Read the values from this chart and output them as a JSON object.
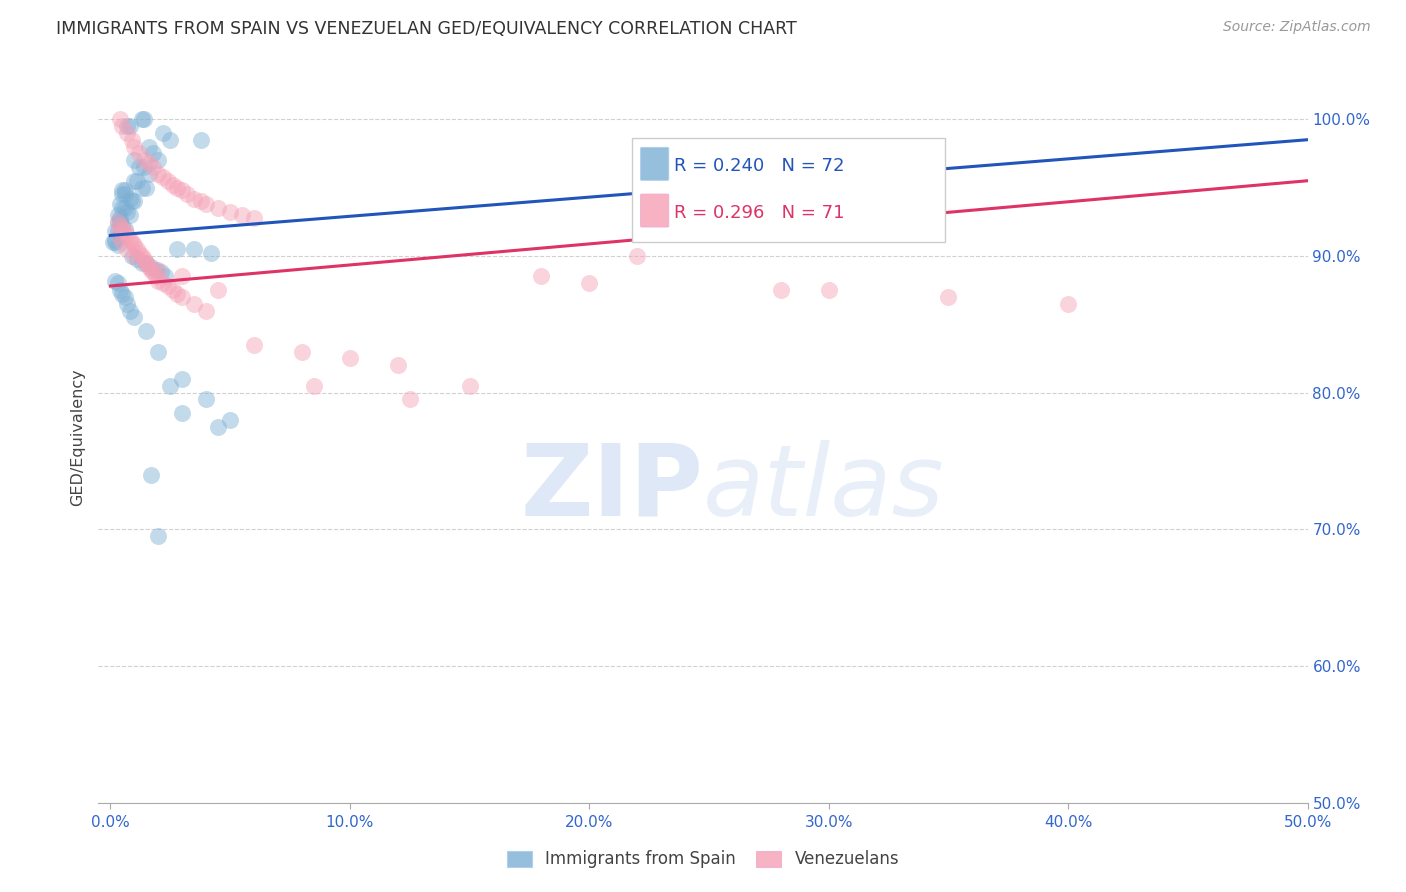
{
  "title": "IMMIGRANTS FROM SPAIN VS VENEZUELAN GED/EQUIVALENCY CORRELATION CHART",
  "source": "Source: ZipAtlas.com",
  "ylabel": "GED/Equivalency",
  "ytick_vals": [
    50.0,
    60.0,
    70.0,
    80.0,
    90.0,
    100.0
  ],
  "xtick_vals": [
    0.0,
    10.0,
    20.0,
    30.0,
    40.0,
    50.0
  ],
  "xmin": -0.5,
  "xmax": 50.0,
  "ymin": 50.0,
  "ymax": 103.5,
  "legend_blue_label": "Immigrants from Spain",
  "legend_pink_label": "Venezuelans",
  "blue_R": 0.24,
  "blue_N": 72,
  "pink_R": 0.296,
  "pink_N": 71,
  "watermark_zip": "ZIP",
  "watermark_atlas": "atlas",
  "blue_color": "#7bafd4",
  "pink_color": "#f5a0b5",
  "blue_line_color": "#2255bb",
  "pink_line_color": "#dd3366",
  "blue_line_x": [
    0.0,
    50.0
  ],
  "blue_line_y": [
    91.5,
    98.5
  ],
  "pink_line_x": [
    0.0,
    50.0
  ],
  "pink_line_y": [
    87.8,
    95.5
  ],
  "blue_points_x": [
    1.3,
    1.4,
    0.7,
    0.8,
    2.2,
    2.5,
    3.8,
    1.6,
    1.8,
    2.0,
    1.0,
    1.2,
    1.4,
    1.6,
    1.0,
    1.1,
    1.3,
    1.5,
    0.5,
    0.6,
    0.5,
    0.6,
    0.8,
    0.9,
    1.0,
    0.4,
    0.5,
    0.6,
    0.7,
    0.8,
    0.3,
    0.4,
    0.3,
    0.4,
    0.5,
    0.6,
    0.2,
    0.3,
    0.4,
    0.2,
    0.1,
    0.2,
    0.3,
    2.8,
    3.5,
    4.2,
    0.9,
    1.1,
    1.3,
    1.5,
    1.7,
    1.9,
    2.1,
    2.3,
    0.2,
    0.3,
    0.4,
    0.5,
    0.6,
    0.7,
    0.8,
    1.0,
    1.5,
    2.0,
    3.0,
    4.0,
    5.0,
    3.0,
    4.5,
    2.5,
    1.7,
    2.0
  ],
  "blue_points_y": [
    100.0,
    100.0,
    99.5,
    99.5,
    99.0,
    98.5,
    98.5,
    98.0,
    97.5,
    97.0,
    97.0,
    96.5,
    96.5,
    96.0,
    95.5,
    95.5,
    95.0,
    95.0,
    94.8,
    94.8,
    94.5,
    94.5,
    94.2,
    94.0,
    94.0,
    93.8,
    93.5,
    93.5,
    93.2,
    93.0,
    93.0,
    92.8,
    92.5,
    92.5,
    92.2,
    92.0,
    91.8,
    91.8,
    91.5,
    91.2,
    91.0,
    91.0,
    90.8,
    90.5,
    90.5,
    90.2,
    90.0,
    89.8,
    89.5,
    89.5,
    89.2,
    89.0,
    88.8,
    88.5,
    88.2,
    88.0,
    87.5,
    87.2,
    87.0,
    86.5,
    86.0,
    85.5,
    84.5,
    83.0,
    81.0,
    79.5,
    78.0,
    78.5,
    77.5,
    80.5,
    74.0,
    69.5
  ],
  "pink_points_x": [
    0.4,
    0.5,
    0.7,
    0.9,
    1.0,
    1.2,
    1.4,
    1.6,
    1.8,
    2.0,
    2.2,
    2.4,
    2.6,
    2.8,
    3.0,
    3.2,
    3.5,
    3.8,
    4.0,
    4.5,
    5.0,
    5.5,
    6.0,
    0.3,
    0.4,
    0.5,
    0.6,
    0.7,
    0.8,
    0.9,
    1.0,
    1.1,
    1.2,
    1.3,
    1.4,
    1.5,
    1.6,
    1.7,
    1.8,
    1.9,
    2.0,
    2.2,
    2.4,
    2.6,
    2.8,
    3.0,
    3.5,
    4.0,
    0.3,
    0.5,
    0.7,
    1.0,
    1.5,
    2.0,
    3.0,
    4.5,
    6.0,
    8.0,
    10.0,
    12.0,
    15.0,
    20.0,
    25.0,
    30.0,
    35.0,
    40.0,
    8.5,
    12.5,
    18.0,
    22.0,
    28.0
  ],
  "pink_points_y": [
    100.0,
    99.5,
    99.0,
    98.5,
    98.0,
    97.5,
    97.0,
    96.8,
    96.5,
    96.0,
    95.8,
    95.5,
    95.2,
    95.0,
    94.8,
    94.5,
    94.2,
    94.0,
    93.8,
    93.5,
    93.2,
    93.0,
    92.8,
    92.5,
    92.2,
    92.0,
    91.8,
    91.5,
    91.2,
    91.0,
    90.8,
    90.5,
    90.2,
    90.0,
    89.8,
    89.5,
    89.2,
    89.0,
    88.8,
    88.5,
    88.2,
    88.0,
    87.8,
    87.5,
    87.2,
    87.0,
    86.5,
    86.0,
    91.5,
    91.0,
    90.5,
    90.0,
    89.5,
    89.0,
    88.5,
    87.5,
    83.5,
    83.0,
    82.5,
    82.0,
    80.5,
    88.0,
    92.5,
    87.5,
    87.0,
    86.5,
    80.5,
    79.5,
    88.5,
    90.0,
    87.5
  ]
}
